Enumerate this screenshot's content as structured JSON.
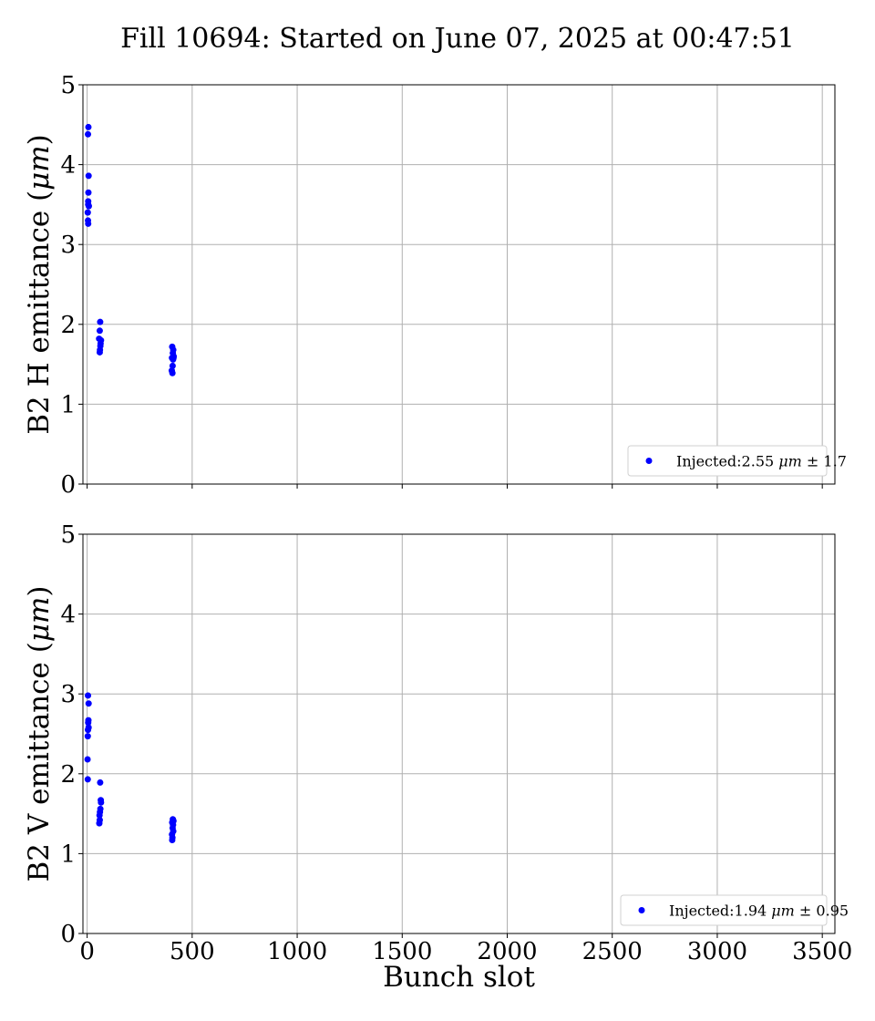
{
  "figure": {
    "title": "Fill 10694: Started on June 07, 2025 at 00:47:51"
  },
  "chart_data": [
    {
      "type": "scatter",
      "xlabel": "",
      "ylabel": "B2 H emittance (μm)",
      "ylabel_parts": {
        "pre": "B2 H emittance (",
        "unit": "μm",
        "post": ")"
      },
      "xlim": [
        -20,
        3560
      ],
      "ylim": [
        0,
        5
      ],
      "xticks": [
        0,
        500,
        1000,
        1500,
        2000,
        2500,
        3000,
        3500
      ],
      "yticks": [
        0,
        1,
        2,
        3,
        4,
        5
      ],
      "show_xtick_labels": false,
      "grid": true,
      "legend_position": "bottom-right",
      "color": "#0000ff",
      "series": [
        {
          "legend": {
            "pre": "Injected:2.55 ",
            "unit": "μm",
            "post": " ± 1.7"
          },
          "points": [
            [
              6,
              4.47
            ],
            [
              4,
              4.38
            ],
            [
              7,
              3.86
            ],
            [
              6,
              3.65
            ],
            [
              5,
              3.54
            ],
            [
              5,
              3.5
            ],
            [
              8,
              3.48
            ],
            [
              3,
              3.4
            ],
            [
              4,
              3.3
            ],
            [
              5,
              3.26
            ],
            [
              62,
              2.03
            ],
            [
              60,
              1.92
            ],
            [
              57,
              1.82
            ],
            [
              66,
              1.8
            ],
            [
              64,
              1.76
            ],
            [
              63,
              1.73
            ],
            [
              61,
              1.68
            ],
            [
              60,
              1.65
            ],
            [
              405,
              1.72
            ],
            [
              410,
              1.68
            ],
            [
              408,
              1.64
            ],
            [
              412,
              1.6
            ],
            [
              404,
              1.58
            ],
            [
              409,
              1.56
            ],
            [
              411,
              1.58
            ],
            [
              407,
              1.48
            ],
            [
              403,
              1.42
            ],
            [
              406,
              1.39
            ]
          ]
        }
      ]
    },
    {
      "type": "scatter",
      "xlabel": "Bunch slot",
      "ylabel": "B2 V emittance (μm)",
      "ylabel_parts": {
        "pre": "B2 V emittance (",
        "unit": "μm",
        "post": ")"
      },
      "xlim": [
        -20,
        3560
      ],
      "ylim": [
        0,
        5
      ],
      "xticks": [
        0,
        500,
        1000,
        1500,
        2000,
        2500,
        3000,
        3500
      ],
      "xtick_labels": [
        "0",
        "500",
        "1000",
        "1500",
        "2000",
        "2500",
        "3000",
        "3500"
      ],
      "yticks": [
        0,
        1,
        2,
        3,
        4,
        5
      ],
      "show_xtick_labels": true,
      "grid": true,
      "legend_position": "bottom-right",
      "color": "#0000ff",
      "series": [
        {
          "legend": {
            "pre": "Injected:1.94 ",
            "unit": "μm",
            "post": " ± 0.95"
          },
          "points": [
            [
              4,
              2.98
            ],
            [
              7,
              2.88
            ],
            [
              6,
              2.67
            ],
            [
              5,
              2.64
            ],
            [
              7,
              2.58
            ],
            [
              4,
              2.55
            ],
            [
              3,
              2.47
            ],
            [
              2,
              2.18
            ],
            [
              3,
              1.93
            ],
            [
              62,
              1.89
            ],
            [
              65,
              1.67
            ],
            [
              66,
              1.64
            ],
            [
              63,
              1.56
            ],
            [
              61,
              1.52
            ],
            [
              59,
              1.48
            ],
            [
              60,
              1.42
            ],
            [
              58,
              1.38
            ],
            [
              408,
              1.43
            ],
            [
              411,
              1.41
            ],
            [
              405,
              1.39
            ],
            [
              409,
              1.36
            ],
            [
              407,
              1.32
            ],
            [
              410,
              1.28
            ],
            [
              404,
              1.24
            ],
            [
              406,
              1.2
            ],
            [
              405,
              1.17
            ]
          ]
        }
      ]
    }
  ]
}
